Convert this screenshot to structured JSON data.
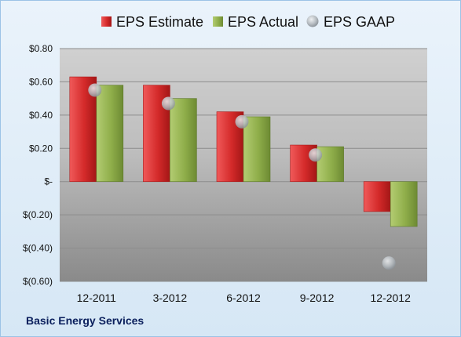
{
  "company_name": "Basic Energy Services",
  "chart_data": {
    "type": "bar",
    "categories": [
      "12-2011",
      "3-2012",
      "6-2012",
      "9-2012",
      "12-2012"
    ],
    "series": [
      {
        "name": "EPS Estimate",
        "kind": "bar",
        "color": "#d42a2a",
        "values": [
          0.63,
          0.58,
          0.42,
          0.22,
          -0.18
        ]
      },
      {
        "name": "EPS Actual",
        "kind": "bar",
        "color": "#8fae4a",
        "values": [
          0.58,
          0.5,
          0.39,
          0.21,
          -0.27
        ]
      },
      {
        "name": "EPS GAAP",
        "kind": "marker",
        "color": "#b9bfc4",
        "values": [
          0.55,
          0.47,
          0.36,
          0.16,
          -0.49
        ]
      }
    ],
    "y_ticks": [
      {
        "value": 0.8,
        "label": "$0.80"
      },
      {
        "value": 0.6,
        "label": "$0.60"
      },
      {
        "value": 0.4,
        "label": "$0.40"
      },
      {
        "value": 0.2,
        "label": "$0.20"
      },
      {
        "value": 0,
        "label": "$-"
      },
      {
        "value": -0.2,
        "label": "$(0.20)"
      },
      {
        "value": -0.4,
        "label": "$(0.40)"
      },
      {
        "value": -0.6,
        "label": "$(0.60)"
      }
    ],
    "ylim": [
      -0.6,
      0.8
    ],
    "grid": true,
    "legend_position": "top"
  }
}
